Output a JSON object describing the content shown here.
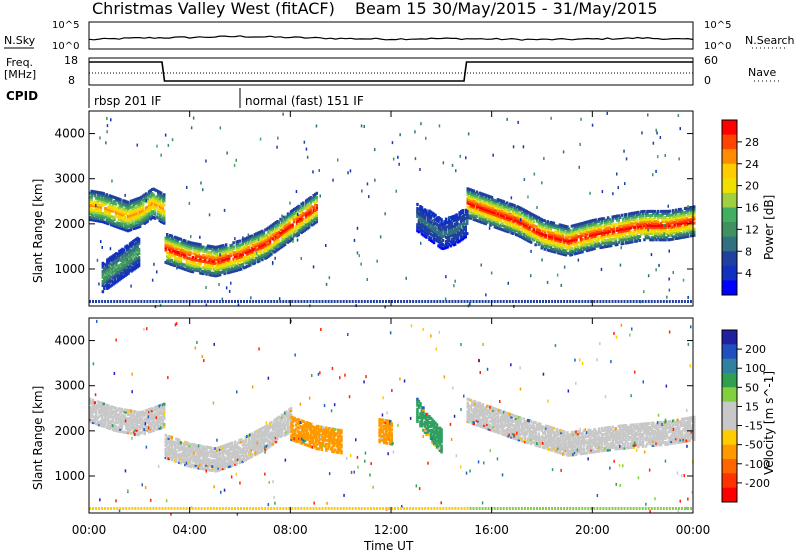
{
  "header": {
    "title": "Christmas Valley West (fitACF)",
    "beam_info": "Beam 15 30/May/2015 - 31/May/2015"
  },
  "strip_labels": {
    "nsky": "N.Sky",
    "nsearch": "N.Search",
    "freq_line1": "Freq.",
    "freq_line2": "[MHz]",
    "nave": "Nave",
    "cpid": "CPID",
    "nsky_top": "10^5",
    "nsky_bottom": "10^0",
    "nsearch_top": "10^5",
    "nsearch_bottom": "10^0",
    "freq_top": "18",
    "freq_bottom": "8",
    "nave_top": "60",
    "nave_bottom": "0"
  },
  "cpid_segments": [
    {
      "label": "rbsp 201 IF",
      "start_hour": 0,
      "end_hour": 6
    },
    {
      "label": "normal (fast) 151 IF",
      "start_hour": 6,
      "end_hour": 24
    }
  ],
  "colorbars": {
    "power": {
      "label": "Power [dB]",
      "ticks": [
        "28",
        "24",
        "20",
        "16",
        "12",
        "8",
        "4"
      ],
      "colors": [
        "#ff0000",
        "#ff4400",
        "#ff8c00",
        "#ffcc00",
        "#f0e000",
        "#a0d040",
        "#40b060",
        "#409060",
        "#307080",
        "#2040a0",
        "#1030c0",
        "#0000ff"
      ]
    },
    "velocity": {
      "label": "Velocity [m s^-1]",
      "ticks": [
        "200",
        "100",
        "50",
        "15",
        "-15",
        "-50",
        "-100",
        "-200"
      ],
      "colors": [
        "#2020a0",
        "#2050c0",
        "#3080a0",
        "#30a050",
        "#80d040",
        "#c8c8c8",
        "#c8c8c8",
        "#ffcc00",
        "#ff9900",
        "#ff6600",
        "#ff3300",
        "#ff0000"
      ]
    }
  },
  "axes": {
    "xlabel": "Time UT",
    "ylabel": "Slant Range [km]",
    "x_ticks": [
      "00:00",
      "04:00",
      "08:00",
      "12:00",
      "16:00",
      "20:00",
      "00:00"
    ],
    "y_ticks": [
      "1000",
      "2000",
      "3000",
      "4000"
    ]
  },
  "chart_data": [
    {
      "type": "line",
      "title": "N.Sky / N.Search",
      "x": [
        0,
        2,
        4,
        6,
        8,
        10,
        12,
        14,
        16,
        18,
        20,
        22,
        24
      ],
      "series": [
        {
          "name": "N.Sky",
          "values": [
            1.0,
            1.3,
            1.4,
            1.6,
            1.4,
            1.2,
            1.1,
            1.2,
            1.1,
            1.0,
            1.1,
            1.3,
            1.0
          ]
        }
      ],
      "ylim": [
        0,
        5
      ]
    },
    {
      "type": "line",
      "title": "Freq. / Nave",
      "x": [
        0,
        2.9,
        3.0,
        14.9,
        15.0,
        24
      ],
      "series": [
        {
          "name": "Freq.",
          "values": [
            16.5,
            16.5,
            9.5,
            9.5,
            16.5,
            16.5
          ]
        }
      ],
      "ylim": [
        8,
        18
      ]
    },
    {
      "type": "heatmap",
      "title": "Power [dB]",
      "xlim": [
        0,
        24
      ],
      "ylim": [
        180,
        4500
      ],
      "bands": [
        {
          "x": [
            0,
            0.5,
            1,
            1.5,
            2,
            2.5,
            3
          ],
          "y": [
            2450,
            2400,
            2300,
            2200,
            2300,
            2500,
            2350
          ],
          "value": 24
        },
        {
          "x": [
            3,
            4,
            5,
            6,
            7,
            8,
            9
          ],
          "y": [
            1500,
            1300,
            1200,
            1350,
            1600,
            2000,
            2400
          ],
          "value": 28
        },
        {
          "x": [
            15,
            16,
            17,
            18,
            19,
            20,
            21,
            22,
            23,
            24
          ],
          "y": [
            2500,
            2300,
            2100,
            1800,
            1650,
            1800,
            1900,
            2000,
            2000,
            2100
          ],
          "value": 28
        },
        {
          "x": [
            0.5,
            1,
            1.5,
            2
          ],
          "y": [
            850,
            1050,
            1250,
            1450
          ],
          "value": 12
        },
        {
          "x": [
            13,
            13.5,
            14,
            14.5,
            15
          ],
          "y": [
            2200,
            2000,
            1800,
            1900,
            2100
          ],
          "value": 8
        }
      ]
    },
    {
      "type": "heatmap",
      "title": "Velocity [m s^-1]",
      "xlim": [
        0,
        24
      ],
      "ylim": [
        180,
        4500
      ],
      "bands": [
        {
          "x": [
            0,
            1,
            2,
            3
          ],
          "y": [
            2500,
            2300,
            2200,
            2400
          ],
          "value": 0
        },
        {
          "x": [
            3,
            4,
            5,
            6,
            7,
            8
          ],
          "y": [
            1700,
            1500,
            1400,
            1600,
            1900,
            2300
          ],
          "value": 0
        },
        {
          "x": [
            8,
            9,
            10
          ],
          "y": [
            2100,
            1900,
            1800
          ],
          "value": -60
        },
        {
          "x": [
            11.5,
            12
          ],
          "y": [
            2050,
            2000
          ],
          "value": -70
        },
        {
          "x": [
            13,
            13.5,
            14
          ],
          "y": [
            2500,
            2100,
            1800
          ],
          "value": 40
        },
        {
          "x": [
            15,
            17,
            19,
            21,
            23,
            24
          ],
          "y": [
            2500,
            2100,
            1750,
            1900,
            2000,
            2100
          ],
          "value": 0
        }
      ]
    }
  ]
}
